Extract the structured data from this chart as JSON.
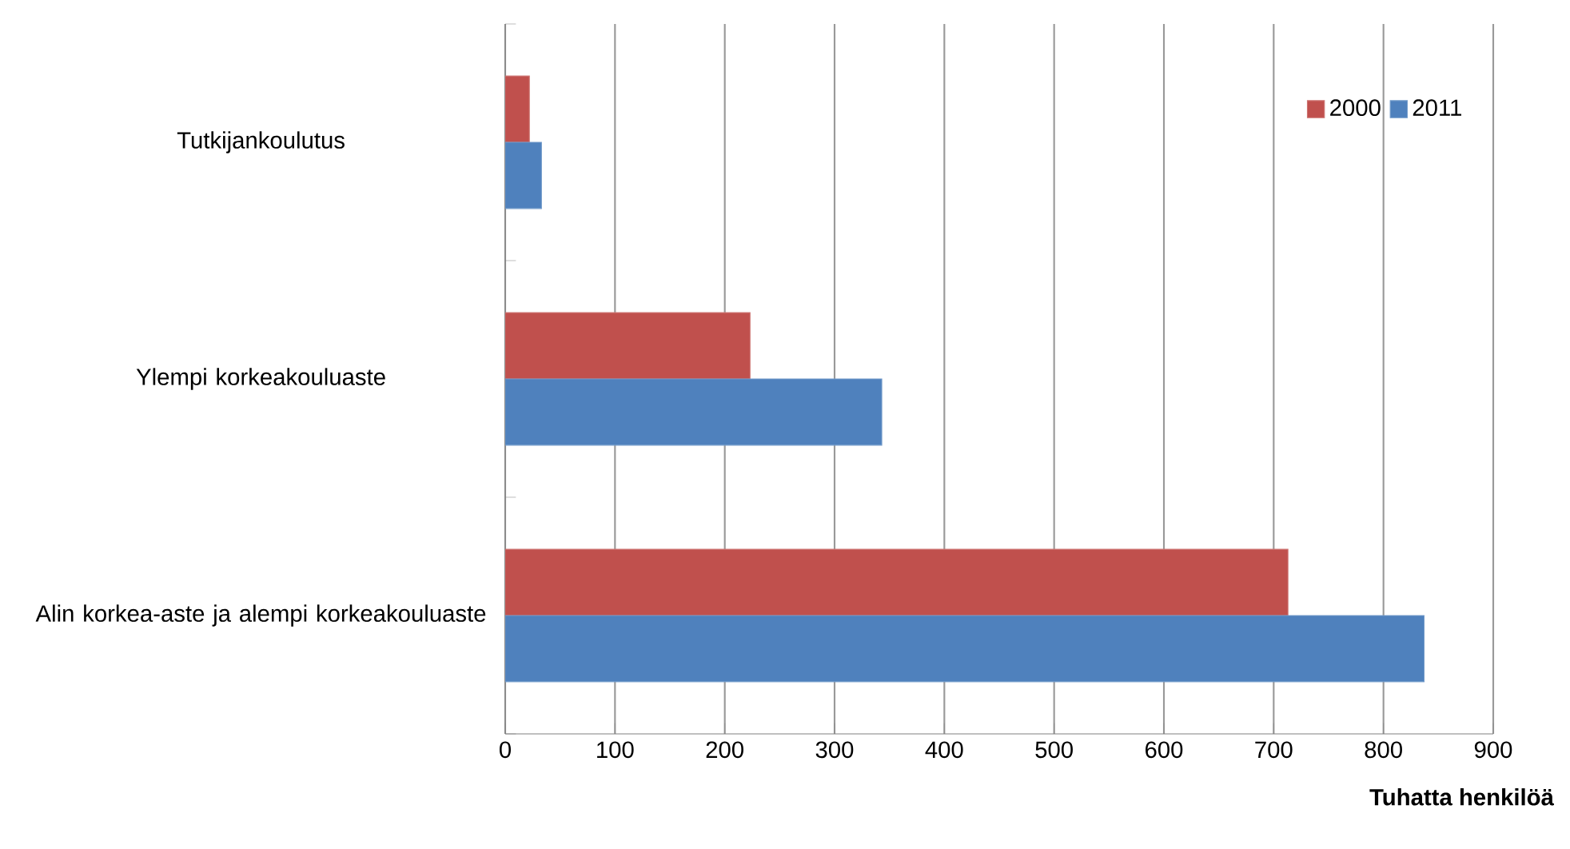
{
  "chart_data": {
    "type": "bar",
    "orientation": "horizontal",
    "xlabel": "Tuhatta henkilöä",
    "categories": [
      "Tutkijankoulutus",
      "Ylempi korkeakouluaste",
      "Alin korkea-aste ja alempi korkeakouluaste"
    ],
    "series": [
      {
        "name": "2000",
        "color": "#c0504d",
        "values": [
          22,
          223,
          713
        ]
      },
      {
        "name": "2011",
        "color": "#4f81bd",
        "values": [
          33,
          343,
          837
        ]
      }
    ],
    "xlim": [
      0,
      900
    ],
    "xticks": [
      0,
      100,
      200,
      300,
      400,
      500,
      600,
      700,
      800,
      900
    ],
    "grid": "x",
    "legend": "top right"
  }
}
